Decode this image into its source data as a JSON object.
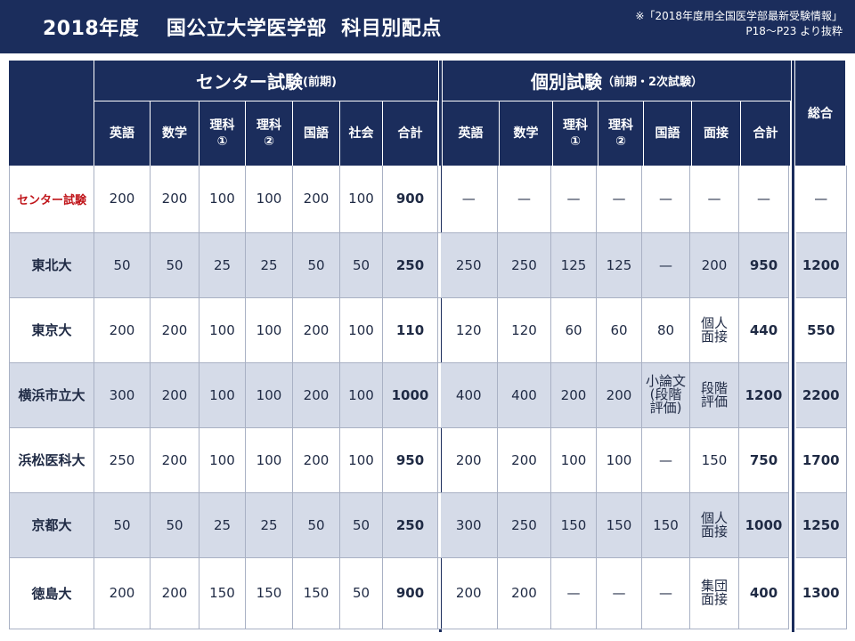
{
  "header": {
    "title": "2018年度　 国公立大学医学部  科目別配点",
    "source_line1": "※「2018年度用全国医学部最新受験情報」",
    "source_line2": "P18～P23 より抜粋"
  },
  "groups": {
    "center_title": "センター試験",
    "center_note": "(前期)",
    "kobetsu_title": "個別試験",
    "kobetsu_note": "（前期・2次試験）",
    "total": "総合"
  },
  "columns": {
    "center": [
      "英語",
      "数学",
      "理科\n①",
      "理科\n②",
      "国語",
      "社会",
      "合計"
    ],
    "kobetsu": [
      "英語",
      "数学",
      "理科\n①",
      "理科\n②",
      "国語",
      "面接",
      "合計"
    ]
  },
  "rows": [
    {
      "name": "センター試験",
      "center": [
        "200",
        "200",
        "100",
        "100",
        "200",
        "100",
        "900"
      ],
      "kobetsu": [
        "—",
        "—",
        "—",
        "—",
        "—",
        "—",
        "—"
      ],
      "total": "—"
    },
    {
      "name": "東北大",
      "center": [
        "50",
        "50",
        "25",
        "25",
        "50",
        "50",
        "250"
      ],
      "kobetsu": [
        "250",
        "250",
        "125",
        "125",
        "—",
        "200",
        "950"
      ],
      "total": "1200"
    },
    {
      "name": "東京大",
      "center": [
        "200",
        "200",
        "100",
        "100",
        "200",
        "100",
        "110"
      ],
      "kobetsu": [
        "120",
        "120",
        "60",
        "60",
        "80",
        "個人\n面接",
        "440"
      ],
      "total": "550"
    },
    {
      "name": "横浜市立大",
      "center": [
        "300",
        "200",
        "100",
        "100",
        "200",
        "100",
        "1000"
      ],
      "kobetsu": [
        "400",
        "400",
        "200",
        "200",
        "小論文\n(段階\n評価)",
        "段階\n評価",
        "1200"
      ],
      "total": "2200"
    },
    {
      "name": "浜松医科大",
      "center": [
        "250",
        "200",
        "100",
        "100",
        "200",
        "100",
        "950"
      ],
      "kobetsu": [
        "200",
        "200",
        "100",
        "100",
        "—",
        "150",
        "750"
      ],
      "total": "1700"
    },
    {
      "name": "京都大",
      "center": [
        "50",
        "50",
        "25",
        "25",
        "50",
        "50",
        "250"
      ],
      "kobetsu": [
        "300",
        "250",
        "150",
        "150",
        "150",
        "個人\n面接",
        "1000"
      ],
      "total": "1250"
    },
    {
      "name": "徳島大",
      "center": [
        "200",
        "200",
        "150",
        "150",
        "150",
        "50",
        "900"
      ],
      "kobetsu": [
        "200",
        "200",
        "—",
        "—",
        "—",
        "集団\n面接",
        "400"
      ],
      "total": "1300"
    }
  ],
  "colors": {
    "navy": "#1b2d5c",
    "red": "#c0161b",
    "band": "#d5dbe8"
  }
}
